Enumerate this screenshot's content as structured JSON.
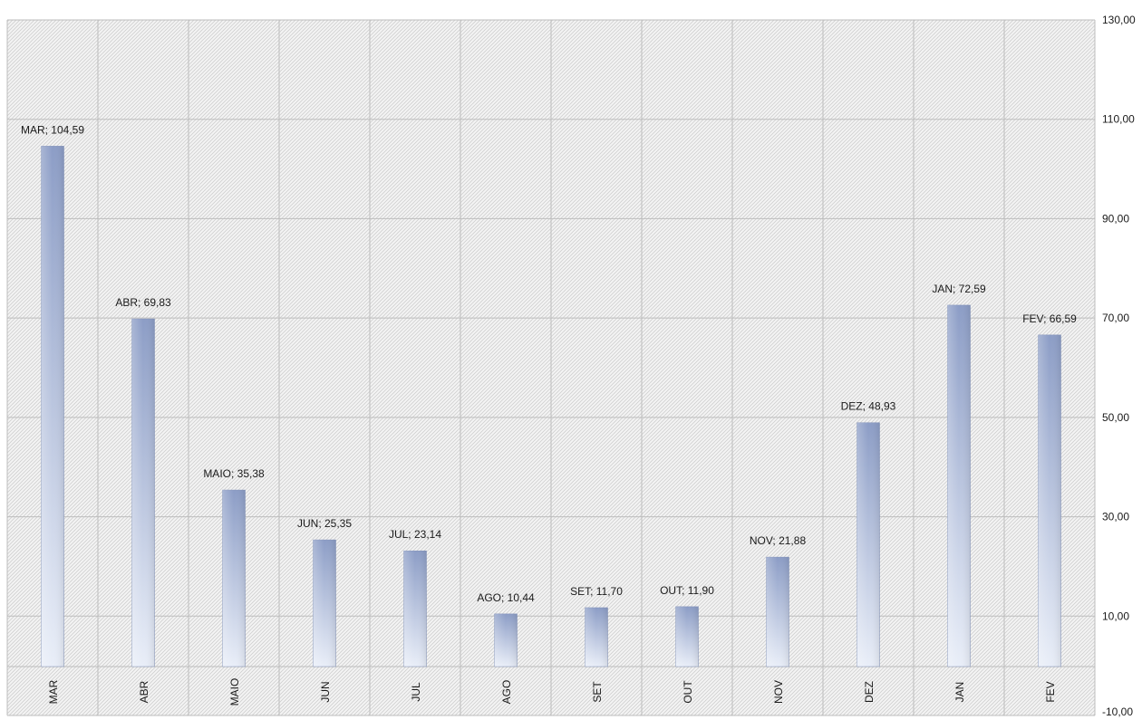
{
  "chart_data": {
    "type": "bar",
    "title": "",
    "xlabel": "",
    "ylabel": "",
    "categories": [
      "MAR",
      "ABR",
      "MAIO",
      "JUN",
      "JUL",
      "AGO",
      "SET",
      "OUT",
      "NOV",
      "DEZ",
      "JAN",
      "FEV"
    ],
    "values": [
      104.59,
      69.83,
      35.38,
      25.35,
      23.14,
      10.44,
      11.7,
      11.9,
      21.88,
      48.93,
      72.59,
      66.59
    ],
    "data_labels": [
      "MAR; 104,59",
      "ABR; 69,83",
      "MAIO; 35,38",
      "JUN; 25,35",
      "JUL; 23,14",
      "AGO; 10,44",
      "SET; 11,70",
      "OUT; 11,90",
      "NOV; 21,88",
      "DEZ; 48,93",
      "JAN; 72,59",
      "FEV; 66,59"
    ],
    "ylim": [
      -10,
      130
    ],
    "yticks": [
      -10,
      10,
      30,
      50,
      70,
      90,
      110,
      130
    ],
    "ytick_labels": [
      "-10,00",
      "10,00",
      "30,00",
      "50,00",
      "70,00",
      "90,00",
      "110,00",
      "130,00"
    ],
    "y_axis_side": "right",
    "grid": true,
    "legend": "none",
    "colors": {
      "bar_top": "#8c9dc6",
      "bar_bottom": "#e9eef8",
      "grid": "#bdbdbd",
      "hatch": "#cfcfcf"
    }
  }
}
